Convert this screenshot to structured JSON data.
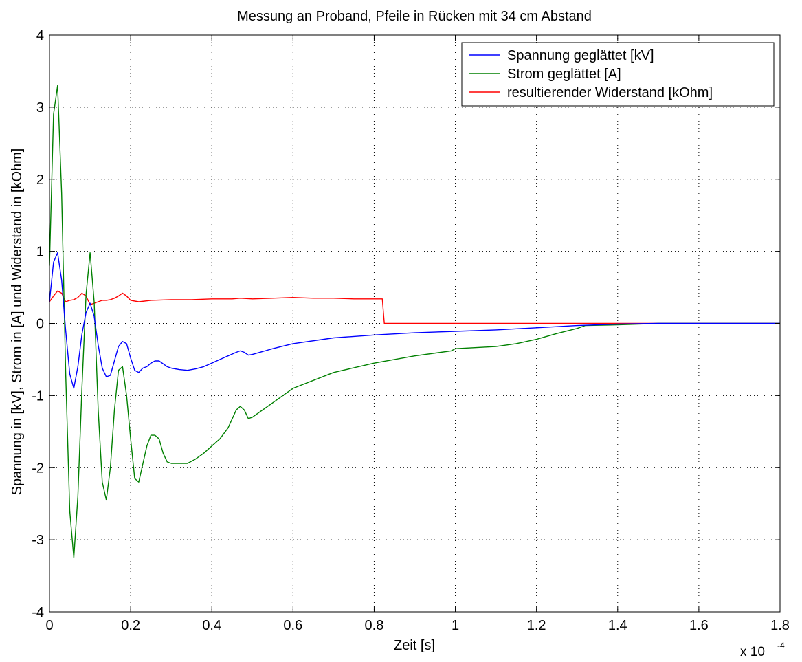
{
  "chart_data": {
    "type": "line",
    "title": "Messung an Proband, Pfeile in Rücken mit 34 cm Abstand",
    "xlabel": "Zeit [s]",
    "ylabel": "Spannung in [kV], Strom in [A] und Widerstand in [kOhm]",
    "x_exponent_base": "x 10",
    "x_exponent_power": "-4",
    "xlim": [
      0,
      1.8
    ],
    "ylim": [
      -4,
      4
    ],
    "xticks": [
      "0",
      "0.2",
      "0.4",
      "0.6",
      "0.8",
      "1",
      "1.2",
      "1.4",
      "1.6",
      "1.8"
    ],
    "yticks": [
      "-4",
      "-3",
      "-2",
      "-1",
      "0",
      "1",
      "2",
      "3",
      "4"
    ],
    "grid": true,
    "legend_position": "top-right",
    "series": [
      {
        "name": "Spannung geglättet [kV]",
        "color": "#0000ff",
        "x": [
          0,
          0.01,
          0.02,
          0.03,
          0.04,
          0.05,
          0.06,
          0.07,
          0.08,
          0.09,
          0.1,
          0.11,
          0.12,
          0.13,
          0.14,
          0.15,
          0.16,
          0.17,
          0.18,
          0.19,
          0.2,
          0.21,
          0.22,
          0.23,
          0.24,
          0.25,
          0.26,
          0.27,
          0.28,
          0.29,
          0.3,
          0.32,
          0.34,
          0.36,
          0.38,
          0.4,
          0.42,
          0.44,
          0.46,
          0.47,
          0.48,
          0.49,
          0.5,
          0.55,
          0.6,
          0.7,
          0.8,
          0.9,
          1.0,
          1.1,
          1.2,
          1.3,
          1.4,
          1.5,
          1.6,
          1.7,
          1.8
        ],
        "y": [
          0.3,
          0.85,
          0.98,
          0.6,
          -0.1,
          -0.7,
          -0.9,
          -0.6,
          -0.15,
          0.15,
          0.28,
          0.1,
          -0.3,
          -0.62,
          -0.74,
          -0.72,
          -0.52,
          -0.32,
          -0.25,
          -0.28,
          -0.48,
          -0.65,
          -0.68,
          -0.62,
          -0.6,
          -0.55,
          -0.52,
          -0.52,
          -0.56,
          -0.6,
          -0.62,
          -0.64,
          -0.65,
          -0.63,
          -0.6,
          -0.55,
          -0.5,
          -0.45,
          -0.4,
          -0.38,
          -0.4,
          -0.44,
          -0.43,
          -0.35,
          -0.28,
          -0.2,
          -0.16,
          -0.13,
          -0.11,
          -0.09,
          -0.06,
          -0.03,
          -0.01,
          0.0,
          0.0,
          0.0,
          0.0
        ]
      },
      {
        "name": "Strom geglättet [A]",
        "color": "#008000",
        "x": [
          0,
          0.01,
          0.02,
          0.03,
          0.04,
          0.05,
          0.06,
          0.07,
          0.08,
          0.09,
          0.1,
          0.11,
          0.12,
          0.13,
          0.14,
          0.15,
          0.16,
          0.17,
          0.18,
          0.19,
          0.2,
          0.21,
          0.22,
          0.23,
          0.24,
          0.25,
          0.26,
          0.27,
          0.28,
          0.29,
          0.3,
          0.32,
          0.34,
          0.36,
          0.38,
          0.4,
          0.42,
          0.44,
          0.46,
          0.47,
          0.48,
          0.49,
          0.5,
          0.55,
          0.6,
          0.7,
          0.8,
          0.9,
          0.99,
          1.0,
          1.1,
          1.15,
          1.2,
          1.25,
          1.3,
          1.32,
          1.4,
          1.5,
          1.6,
          1.7,
          1.8
        ],
        "y": [
          0.8,
          2.9,
          3.3,
          1.8,
          -0.7,
          -2.6,
          -3.25,
          -2.4,
          -0.9,
          0.4,
          0.98,
          0.3,
          -1.2,
          -2.2,
          -2.45,
          -2.0,
          -1.2,
          -0.65,
          -0.6,
          -1.0,
          -1.6,
          -2.15,
          -2.2,
          -1.95,
          -1.7,
          -1.55,
          -1.55,
          -1.6,
          -1.8,
          -1.92,
          -1.94,
          -1.94,
          -1.94,
          -1.88,
          -1.8,
          -1.7,
          -1.6,
          -1.45,
          -1.2,
          -1.15,
          -1.2,
          -1.32,
          -1.3,
          -1.1,
          -0.9,
          -0.68,
          -0.55,
          -0.45,
          -0.38,
          -0.35,
          -0.32,
          -0.28,
          -0.22,
          -0.14,
          -0.07,
          -0.03,
          -0.02,
          0.0,
          0.0,
          0.0,
          0.0
        ]
      },
      {
        "name": "resultierender Widerstand [kOhm]",
        "color": "#ff0000",
        "x": [
          0,
          0.01,
          0.02,
          0.03,
          0.04,
          0.05,
          0.06,
          0.07,
          0.08,
          0.09,
          0.1,
          0.11,
          0.12,
          0.13,
          0.14,
          0.15,
          0.16,
          0.17,
          0.18,
          0.19,
          0.2,
          0.22,
          0.25,
          0.3,
          0.35,
          0.4,
          0.45,
          0.47,
          0.5,
          0.55,
          0.6,
          0.65,
          0.7,
          0.75,
          0.8,
          0.82,
          0.825,
          0.9,
          1.0,
          1.2,
          1.4,
          1.6,
          1.8
        ],
        "y": [
          0.3,
          0.38,
          0.45,
          0.42,
          0.3,
          0.32,
          0.33,
          0.36,
          0.42,
          0.38,
          0.26,
          0.28,
          0.3,
          0.32,
          0.32,
          0.33,
          0.35,
          0.38,
          0.42,
          0.38,
          0.32,
          0.3,
          0.32,
          0.33,
          0.33,
          0.34,
          0.34,
          0.35,
          0.34,
          0.35,
          0.36,
          0.35,
          0.35,
          0.34,
          0.34,
          0.34,
          0.0,
          0.0,
          0.0,
          0.0,
          0.0,
          0.0,
          0.0
        ]
      }
    ]
  }
}
